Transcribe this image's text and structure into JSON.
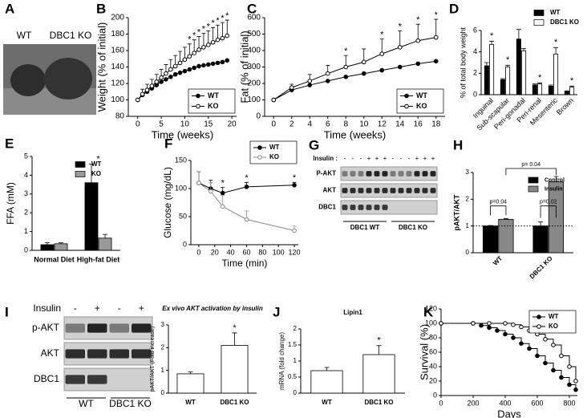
{
  "photo": {
    "panel": "A",
    "labels": [
      "WT",
      "DBC1 KO"
    ]
  },
  "blots": [
    {
      "panel": "G",
      "insulin_label": "Insulin :",
      "lanes": [
        "-",
        "-",
        "-",
        "+",
        "+",
        "+",
        "-",
        "-",
        "-",
        "+",
        "+",
        "+"
      ],
      "rows": [
        "P-AKT",
        "AKT",
        "DBC1"
      ],
      "groups": [
        "DBC1 WT",
        "DBC1 KO"
      ]
    },
    {
      "panel": "I",
      "insulin_label": "Insulin",
      "lanes": [
        "-",
        "+",
        "-",
        "+"
      ],
      "rows": [
        "p-AKT",
        "AKT",
        "DBC1"
      ],
      "groups": [
        "WT",
        "DBC1 KO"
      ]
    }
  ],
  "chart_data": [
    {
      "panel": "B",
      "type": "line",
      "x_label": "Time (weeks)",
      "y_label": "Weight (% of initial)",
      "x": [
        0,
        1,
        2,
        3,
        4,
        5,
        6,
        7,
        8,
        9,
        10,
        11,
        12,
        13,
        14,
        15,
        16,
        17,
        18,
        19
      ],
      "series": [
        {
          "name": "WT",
          "color": "#000000",
          "marker": "filled",
          "values": [
            100,
            106,
            110,
            114,
            118,
            122,
            125,
            128,
            131,
            133,
            135,
            137,
            139,
            141,
            142,
            143,
            144,
            145,
            146,
            148
          ]
        },
        {
          "name": "KO",
          "color": "#000000",
          "marker": "open",
          "values": [
            100,
            107,
            112,
            117,
            122,
            127,
            132,
            137,
            141,
            145,
            149,
            153,
            157,
            161,
            164,
            167,
            170,
            173,
            175,
            178
          ],
          "errors": [
            0,
            6,
            7,
            8,
            9,
            10,
            11,
            12,
            13,
            14,
            15,
            15,
            16,
            16,
            17,
            17,
            18,
            18,
            19,
            19
          ]
        }
      ],
      "annotations": [
        {
          "x": 11,
          "text": "*"
        },
        {
          "x": 12,
          "text": "*"
        },
        {
          "x": 13,
          "text": "*"
        },
        {
          "x": 14,
          "text": "*"
        },
        {
          "x": 15,
          "text": "*"
        },
        {
          "x": 16,
          "text": "*"
        },
        {
          "x": 17,
          "text": "*"
        },
        {
          "x": 18,
          "text": "*"
        },
        {
          "x": 19,
          "text": "*"
        }
      ],
      "xlim": [
        -2,
        21
      ],
      "xticks": [
        0,
        5,
        10,
        15,
        20
      ],
      "ylim": [
        80,
        200
      ],
      "yticks": [
        80,
        100,
        120,
        140,
        160,
        180,
        200
      ],
      "legend": "lower right"
    },
    {
      "panel": "C",
      "type": "line",
      "x_label": "Time (weeks)",
      "y_label": "Fat (% of initial)",
      "x": [
        0,
        2,
        4,
        6,
        8,
        10,
        12,
        14,
        16,
        18
      ],
      "series": [
        {
          "name": "WT",
          "color": "#000000",
          "marker": "filled",
          "values": [
            100,
            160,
            190,
            215,
            240,
            260,
            280,
            300,
            320,
            335
          ]
        },
        {
          "name": "KO",
          "color": "#000000",
          "marker": "open",
          "values": [
            100,
            175,
            215,
            260,
            300,
            330,
            380,
            420,
            460,
            480
          ],
          "errors": [
            0,
            20,
            40,
            50,
            70,
            80,
            90,
            100,
            100,
            110
          ]
        }
      ],
      "annotations": [
        {
          "x": 8,
          "text": "*"
        },
        {
          "x": 12,
          "text": "*"
        },
        {
          "x": 14,
          "text": "*"
        },
        {
          "x": 16,
          "text": "*"
        },
        {
          "x": 18,
          "text": "*"
        }
      ],
      "xlim": [
        -1,
        19
      ],
      "xticks": [
        0,
        2,
        4,
        6,
        8,
        10,
        12,
        14,
        16,
        18
      ],
      "ylim": [
        0,
        600
      ],
      "yticks": [
        0,
        100,
        200,
        300,
        400,
        500,
        600
      ],
      "legend": "lower right"
    },
    {
      "panel": "D",
      "type": "bar",
      "y_label": "% of total body weight",
      "categories": [
        "Inguinal",
        "Sub-scapular",
        "Peri-gonadal",
        "Peri-renal",
        "Mesenteric",
        "Brown"
      ],
      "series": [
        {
          "name": "WT",
          "color": "#000000",
          "values": [
            2.7,
            1.4,
            5.2,
            0.9,
            0.8,
            0.3
          ],
          "errors": [
            0.3,
            0.1,
            0.9,
            0.1,
            0.1,
            0.05
          ]
        },
        {
          "name": "DBC1 KO",
          "color": "#ffffff",
          "values": [
            4.7,
            2.6,
            4.1,
            1.0,
            3.8,
            0.7
          ],
          "errors": [
            0.3,
            0.15,
            0.2,
            0.1,
            0.6,
            0.1
          ]
        }
      ],
      "annotations": [
        {
          "category": "Inguinal",
          "text": "*"
        },
        {
          "category": "Sub-scapular",
          "text": "*"
        },
        {
          "category": "Peri-renal",
          "text": "*"
        },
        {
          "category": "Mesenteric",
          "text": "*"
        },
        {
          "category": "Brown",
          "text": "*"
        }
      ],
      "ylim": [
        0,
        6
      ],
      "yticks": [
        0,
        2,
        4,
        6
      ],
      "legend": "upper right"
    },
    {
      "panel": "E",
      "type": "bar",
      "y_label": "FFA (mM)",
      "categories": [
        "Normal Diet",
        "High-fat Diet"
      ],
      "series": [
        {
          "name": "WT",
          "color": "#000000",
          "values": [
            0.3,
            3.6
          ],
          "errors": [
            0.1,
            1.0
          ]
        },
        {
          "name": "KO",
          "color": "#999999",
          "values": [
            0.35,
            0.65
          ],
          "errors": [
            0.05,
            0.2
          ]
        }
      ],
      "annotations": [
        {
          "category": "High-fat Diet",
          "text": "*"
        }
      ],
      "ylim": [
        0,
        5
      ],
      "yticks": [
        0,
        1,
        2,
        3,
        4,
        5
      ],
      "legend": "upper right"
    },
    {
      "panel": "F",
      "type": "line",
      "x_label": "Time (min)",
      "y_label": "Glucose (mg/dL)",
      "x": [
        0,
        15,
        30,
        60,
        120
      ],
      "series": [
        {
          "name": "WT",
          "color": "#000000",
          "marker": "filled",
          "values": [
            110,
            100,
            92,
            103,
            106
          ],
          "errors": [
            20,
            15,
            10,
            8,
            5
          ]
        },
        {
          "name": "KO",
          "color": "#888888",
          "marker": "open",
          "values": [
            110,
            95,
            68,
            45,
            25
          ],
          "errors": [
            20,
            15,
            20,
            15,
            8
          ]
        }
      ],
      "annotations": [
        {
          "x": 30,
          "text": "*"
        },
        {
          "x": 60,
          "text": "*"
        },
        {
          "x": 120,
          "text": "*"
        }
      ],
      "xlim": [
        -10,
        125
      ],
      "xticks": [
        0,
        20,
        40,
        60,
        80,
        100,
        120
      ],
      "ylim": [
        0,
        150
      ],
      "yticks": [
        0,
        50,
        100,
        150
      ],
      "legend": "upper right"
    },
    {
      "panel": "H",
      "type": "bar",
      "y_label": "pAKT/AKT",
      "categories": [
        "WT",
        "DBC1 KO"
      ],
      "series": [
        {
          "name": "Control",
          "color": "#000000",
          "values": [
            1.0,
            1.0
          ],
          "errors": [
            0.02,
            0.15
          ]
        },
        {
          "name": "Insulin",
          "color": "#888888",
          "values": [
            1.25,
            2.65
          ],
          "errors": [
            0.03,
            0.2
          ]
        }
      ],
      "p_values": [
        "p=0.04",
        "p=0.02",
        "p= 0.04"
      ],
      "reference_line": 1,
      "ylim": [
        0,
        3
      ],
      "yticks": [
        0,
        1,
        2,
        3
      ],
      "legend": "upper right"
    },
    {
      "panel": "I",
      "type": "bar",
      "title": "Ex vivo AKT activation by insulin",
      "y_label": "pAKT/AKT (Fold increase)",
      "categories": [
        "WT",
        "DBC1 KO"
      ],
      "values": [
        0.85,
        2.1
      ],
      "errors": [
        0.08,
        0.55
      ],
      "color": "#ffffff",
      "annotations": [
        {
          "category": "DBC1 KO",
          "text": "*"
        }
      ],
      "ylim": [
        0,
        3
      ],
      "yticks": [
        0,
        1,
        2,
        3
      ]
    },
    {
      "panel": "J",
      "type": "bar",
      "title": "Lipin1",
      "y_label": "mRNA (fold change)",
      "categories": [
        "WT",
        "DBC1 KO"
      ],
      "values": [
        0.7,
        1.2
      ],
      "errors": [
        0.1,
        0.28
      ],
      "color": "#ffffff",
      "annotations": [
        {
          "category": "DBC1 KO",
          "text": "*"
        }
      ],
      "ylim": [
        0,
        2
      ],
      "yticks": [
        0,
        0.5,
        1,
        1.5,
        2
      ]
    },
    {
      "panel": "K",
      "type": "step",
      "x_label": "Days",
      "y_label": "Survival (%)",
      "series": [
        {
          "name": "WT",
          "color": "#000000",
          "marker": "filled",
          "x": [
            0,
            200,
            250,
            300,
            350,
            400,
            450,
            500,
            550,
            600,
            650,
            700,
            750,
            800,
            840
          ],
          "values": [
            100,
            100,
            97,
            94,
            90,
            85,
            80,
            72,
            65,
            55,
            45,
            35,
            25,
            15,
            8
          ]
        },
        {
          "name": "KO",
          "color": "#000000",
          "marker": "open",
          "x": [
            0,
            200,
            300,
            400,
            450,
            500,
            550,
            600,
            650,
            700,
            750,
            800,
            840
          ],
          "values": [
            100,
            100,
            100,
            100,
            98,
            95,
            90,
            85,
            78,
            70,
            55,
            40,
            20
          ]
        }
      ],
      "xlim": [
        0,
        850
      ],
      "xticks": [
        0,
        200,
        400,
        600,
        800
      ],
      "ylim": [
        0,
        120
      ],
      "yticks": [
        0,
        20,
        40,
        60,
        80,
        100,
        120
      ],
      "legend": "upper right"
    }
  ]
}
